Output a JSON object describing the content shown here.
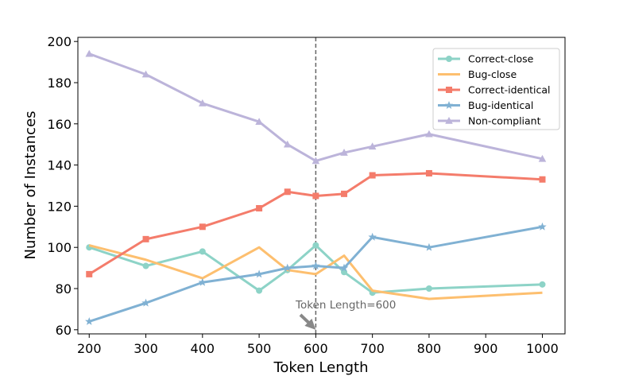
{
  "chart_data": {
    "type": "line",
    "xlabel": "Token Length",
    "ylabel": "Number of Instances",
    "xlim": [
      180,
      1040
    ],
    "ylim": [
      58,
      202
    ],
    "xticks": [
      200,
      300,
      400,
      500,
      600,
      700,
      800,
      900,
      1000
    ],
    "yticks": [
      60,
      80,
      100,
      120,
      140,
      160,
      180,
      200
    ],
    "x": [
      200,
      300,
      400,
      500,
      550,
      600,
      650,
      700,
      800,
      1000
    ],
    "grid": false,
    "legend_placement": "top-right",
    "series": [
      {
        "name": "Correct-close",
        "color": "#8dd3c7",
        "marker": "circle",
        "values": [
          100,
          91,
          98,
          79,
          89,
          101,
          88,
          78,
          80,
          82
        ]
      },
      {
        "name": "Bug-close",
        "color": "#fdbf6f",
        "marker": "none",
        "values": [
          101,
          94,
          85,
          100,
          89,
          87,
          96,
          79,
          75,
          78
        ]
      },
      {
        "name": "Correct-identical",
        "color": "#f47c6b",
        "marker": "square",
        "values": [
          87,
          104,
          110,
          119,
          127,
          125,
          126,
          135,
          136,
          133
        ]
      },
      {
        "name": "Bug-identical",
        "color": "#80b1d3",
        "marker": "star",
        "values": [
          64,
          73,
          83,
          87,
          90,
          91,
          90,
          105,
          100,
          110
        ]
      },
      {
        "name": "Non-compliant",
        "color": "#bcb4da",
        "marker": "triangle",
        "values": [
          194,
          184,
          170,
          161,
          150,
          142,
          146,
          149,
          155,
          143
        ]
      }
    ],
    "vline": {
      "x": 600,
      "color": "#666666"
    },
    "annotation": {
      "text": "Token Length=600",
      "arrow_to": [
        600,
        60
      ],
      "arrow_color": "#888888"
    }
  }
}
